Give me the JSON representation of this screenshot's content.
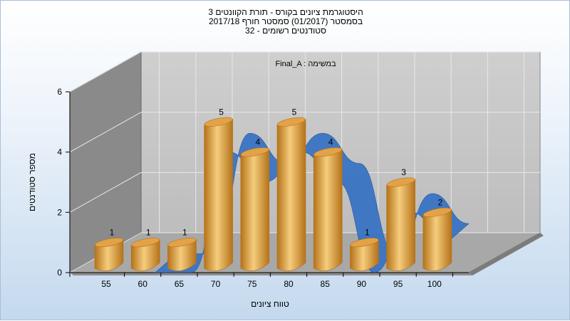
{
  "chart_data": {
    "type": "bar",
    "title_lines": [
      "היסטוגרמת ציונים בקורס - תורת הקוונטים 3",
      "בסמסטר  (01/2017)  סמסטר חורף 2017/18",
      "סטודנטים רשומים - 32"
    ],
    "series_label": "Final_A : במשימה",
    "xlabel": "טווח ציונים",
    "ylabel": "מספר סטודנטים",
    "categories": [
      "55",
      "60",
      "65",
      "70",
      "75",
      "80",
      "85",
      "90",
      "95",
      "100"
    ],
    "values": [
      1,
      1,
      1,
      5,
      4,
      5,
      4,
      1,
      3,
      2
    ],
    "data_labels": [
      "1",
      "1",
      "1",
      "5",
      "4",
      "5",
      "4",
      "1",
      "3",
      "2"
    ],
    "yticks": [
      "0",
      "2",
      "4",
      "6"
    ],
    "ylim": [
      0,
      6
    ],
    "trend_line": true,
    "grid": true,
    "colors": {
      "bar": "#e3a248",
      "bar_dark": "#b57218",
      "bar_light": "#f5cd7e",
      "trend": "#3a74c4",
      "wall_back": "#c6c6c6",
      "wall_side": "#8a8a8a",
      "floor": "#a4a4a4"
    }
  }
}
